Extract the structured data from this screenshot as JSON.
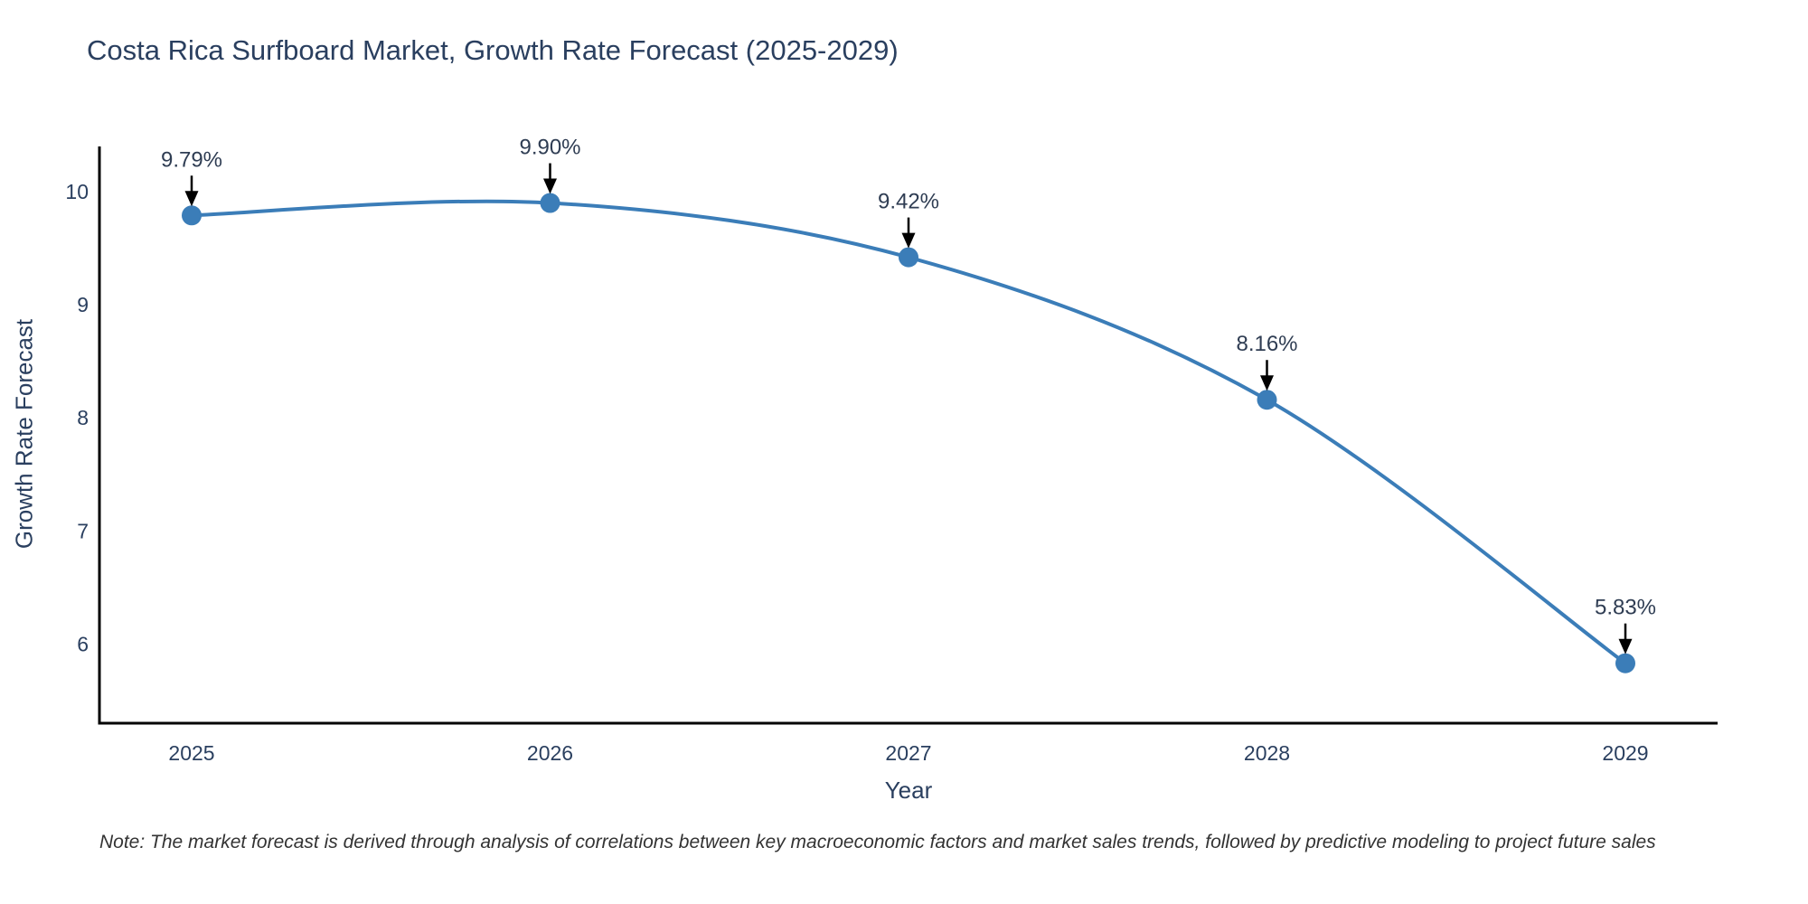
{
  "chart_data": {
    "type": "line",
    "title": "Costa Rica Surfboard Market, Growth Rate Forecast (2025-2029)",
    "xlabel": "Year",
    "ylabel": "Growth Rate Forecast",
    "x": [
      2025,
      2026,
      2027,
      2028,
      2029
    ],
    "values": [
      9.79,
      9.9,
      9.42,
      8.16,
      5.83
    ],
    "point_labels": [
      "9.79%",
      "9.90%",
      "9.42%",
      "8.16%",
      "5.83%"
    ],
    "yticks": [
      6,
      7,
      8,
      9,
      10
    ],
    "ylim": [
      5.3,
      10.4
    ],
    "grid": false,
    "legend_position": "none",
    "line_style": "spline",
    "marker": "circle",
    "colors": {
      "line": "#3b7db8",
      "marker": "#3b7db8",
      "axis": "#000000",
      "axis_text": "#2a3f5f",
      "annotation_text": "#2f3d53",
      "annotation_arrow": "#000000",
      "title_text": "#2a3f5f",
      "note_text": "#333333",
      "background": "#ffffff"
    },
    "note": "Note: The market forecast is derived through analysis of correlations between key macroeconomic factors and market sales trends, followed by predictive modeling to project future sales"
  }
}
